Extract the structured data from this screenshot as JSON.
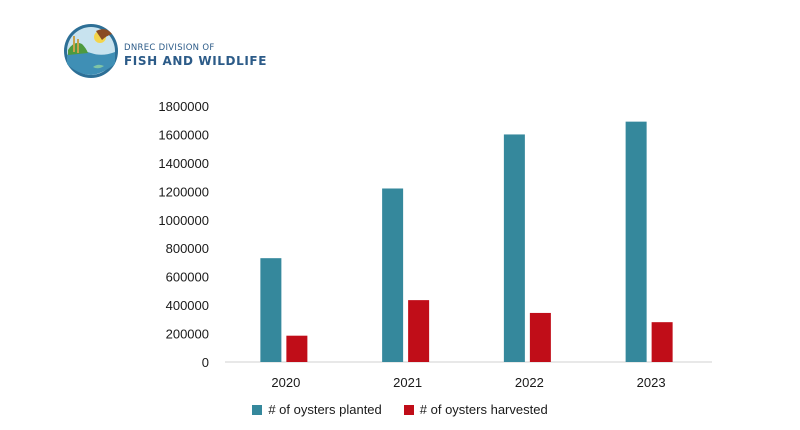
{
  "logo": {
    "line1": "DNREC DIVISION OF",
    "line2": "FISH AND WILDLIFE"
  },
  "colors": {
    "planted": "#35889c",
    "harvested": "#c00d18",
    "axis": "#d0d0d0",
    "logo_blue": "#2c5b88"
  },
  "chart_data": {
    "type": "bar",
    "categories": [
      "2020",
      "2021",
      "2022",
      "2023"
    ],
    "series": [
      {
        "name": "# of oysters planted",
        "values": [
          730000,
          1220000,
          1600000,
          1690000
        ]
      },
      {
        "name": "# of oysters harvested",
        "values": [
          185000,
          435000,
          345000,
          280000
        ]
      }
    ],
    "ylim": [
      0,
      1800000
    ],
    "yticks": [
      "1800000",
      "1600000",
      "1400000",
      "1200000",
      "1000000",
      "800000",
      "600000",
      "400000",
      "200000",
      "0"
    ],
    "grid": false,
    "legend_position": "bottom",
    "title": "",
    "xlabel": "",
    "ylabel": ""
  }
}
